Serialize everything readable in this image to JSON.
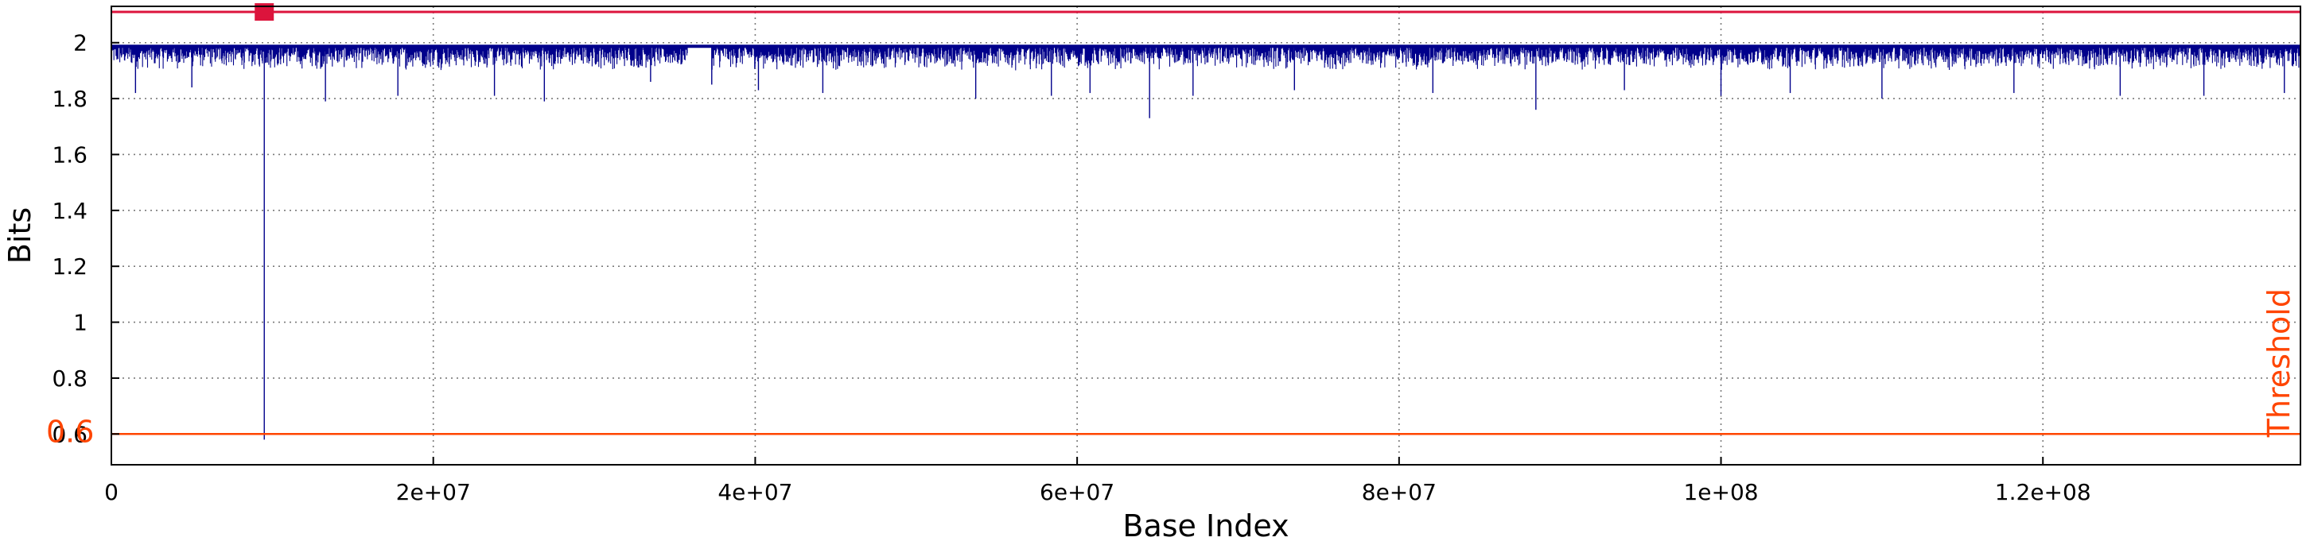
{
  "chart_data": {
    "type": "line",
    "title": "",
    "xlabel": "Base Index",
    "ylabel": "Bits",
    "xlim": [
      0,
      136000000
    ],
    "ylim": [
      0.49,
      2.13
    ],
    "x_ticks": [
      0,
      20000000,
      40000000,
      60000000,
      80000000,
      100000000,
      120000000
    ],
    "x_tick_labels": [
      "0",
      "2e+07",
      "4e+07",
      "6e+07",
      "8e+07",
      "1e+08",
      "1.2e+08"
    ],
    "y_ticks": [
      0.6,
      0.8,
      1,
      1.2,
      1.4,
      1.6,
      1.8,
      2
    ],
    "y_tick_labels": [
      "0.6",
      "0.8",
      "1",
      "1.2",
      "1.4",
      "1.6",
      "1.8",
      "2"
    ],
    "grid": true,
    "legend": "none",
    "series": [
      {
        "color": "#00008b",
        "baseline": 1.99,
        "typical_min": 1.9,
        "spikes": [
          {
            "x": 1500000,
            "y": 1.82
          },
          {
            "x": 5000000,
            "y": 1.84
          },
          {
            "x": 9500000,
            "y": 0.58
          },
          {
            "x": 13300000,
            "y": 1.79
          },
          {
            "x": 17800000,
            "y": 1.81
          },
          {
            "x": 23800000,
            "y": 1.81
          },
          {
            "x": 26900000,
            "y": 1.79
          },
          {
            "x": 33500000,
            "y": 1.86
          },
          {
            "x": 37300000,
            "y": 1.85
          },
          {
            "x": 40200000,
            "y": 1.83
          },
          {
            "x": 44200000,
            "y": 1.82
          },
          {
            "x": 53700000,
            "y": 1.8
          },
          {
            "x": 58400000,
            "y": 1.81
          },
          {
            "x": 60800000,
            "y": 1.82
          },
          {
            "x": 64500000,
            "y": 1.73
          },
          {
            "x": 67200000,
            "y": 1.81
          },
          {
            "x": 73500000,
            "y": 1.83
          },
          {
            "x": 82100000,
            "y": 1.82
          },
          {
            "x": 88500000,
            "y": 1.76
          },
          {
            "x": 94000000,
            "y": 1.83
          },
          {
            "x": 100000000,
            "y": 1.81
          },
          {
            "x": 104300000,
            "y": 1.82
          },
          {
            "x": 110000000,
            "y": 1.8
          },
          {
            "x": 118200000,
            "y": 1.82
          },
          {
            "x": 124800000,
            "y": 1.81
          },
          {
            "x": 130000000,
            "y": 1.81
          },
          {
            "x": 135000000,
            "y": 1.82
          }
        ],
        "gaps": [
          [
            35800000,
            37300000
          ]
        ]
      }
    ],
    "reference_lines": [
      {
        "type": "hline",
        "y": 0.6,
        "color": "#ff4500",
        "label": "Threshold",
        "value_label": "0.6"
      },
      {
        "type": "hline",
        "y": 2.11,
        "color": "#dc143c",
        "marker_x": 9500000
      }
    ]
  }
}
